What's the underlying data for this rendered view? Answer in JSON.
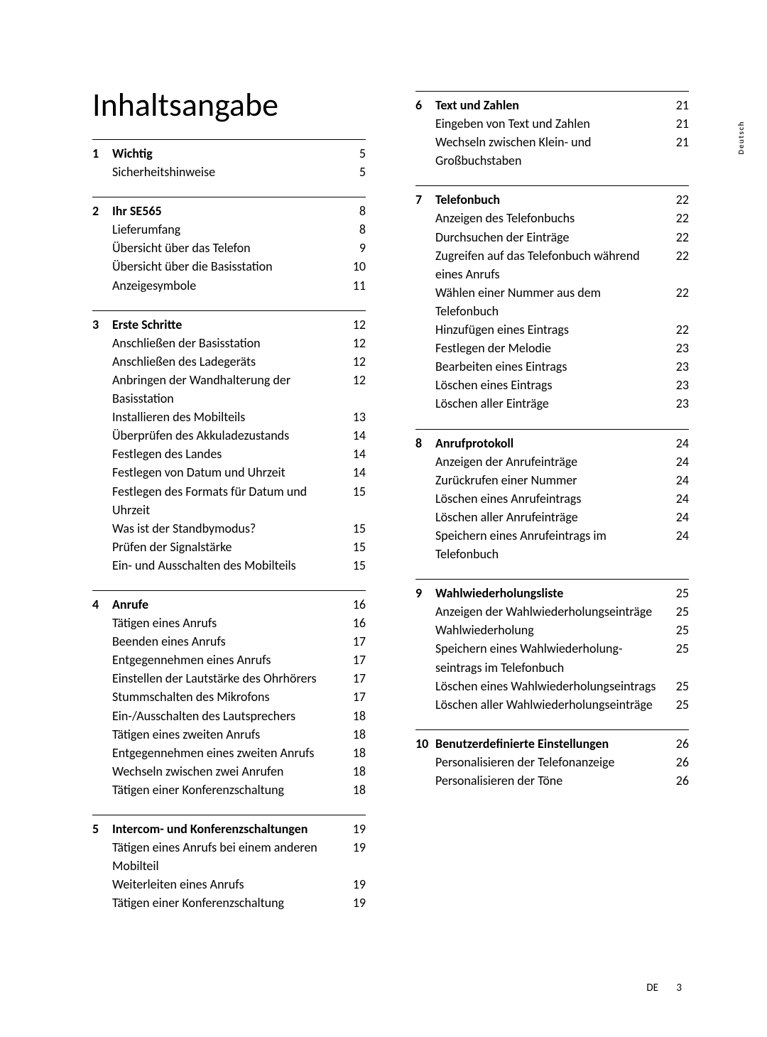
{
  "title": "Inhaltsangabe",
  "sideTab": "Deutsch",
  "footer": {
    "lang": "DE",
    "page": "3"
  },
  "leftSections": [
    {
      "num": "1",
      "head": {
        "label": "Wichtig",
        "page": "5"
      },
      "items": [
        {
          "label": "Sicherheitshinweise",
          "page": "5"
        }
      ]
    },
    {
      "num": "2",
      "head": {
        "label": "Ihr SE565",
        "page": "8"
      },
      "items": [
        {
          "label": "Lieferumfang",
          "page": "8"
        },
        {
          "label": "Übersicht über das Telefon",
          "page": "9"
        },
        {
          "label": "Übersicht über die Basisstation",
          "page": "10"
        },
        {
          "label": "Anzeigesymbole",
          "page": "11"
        }
      ]
    },
    {
      "num": "3",
      "head": {
        "label": "Erste Schritte",
        "page": "12"
      },
      "items": [
        {
          "label": "Anschließen der Basisstation",
          "page": "12"
        },
        {
          "label": "Anschließen des Ladegeräts",
          "page": "12"
        },
        {
          "label": "Anbringen der Wandhalterung der Basisstation",
          "page": "12"
        },
        {
          "label": "Installieren des Mobilteils",
          "page": "13"
        },
        {
          "label": "Überprüfen des Akkuladezustands",
          "page": "14"
        },
        {
          "label": "Festlegen des Landes",
          "page": "14"
        },
        {
          "label": "Festlegen von Datum und Uhrzeit",
          "page": "14"
        },
        {
          "label": "Festlegen des Formats für Datum und Uhrzeit",
          "page": "15"
        },
        {
          "label": "Was ist der Standbymodus?",
          "page": "15"
        },
        {
          "label": "Prüfen der Signalstärke",
          "page": "15"
        },
        {
          "label": "Ein- und Ausschalten des Mobilteils",
          "page": "15"
        }
      ]
    },
    {
      "num": "4",
      "head": {
        "label": "Anrufe",
        "page": "16"
      },
      "items": [
        {
          "label": "Tätigen eines Anrufs",
          "page": "16"
        },
        {
          "label": "Beenden eines Anrufs",
          "page": "17"
        },
        {
          "label": "Entgegennehmen eines Anrufs",
          "page": "17"
        },
        {
          "label": "Einstellen der Lautstärke des Ohrhörers",
          "page": "17"
        },
        {
          "label": "Stummschalten des Mikrofons",
          "page": "17"
        },
        {
          "label": "Ein-/Ausschalten des Lautsprechers",
          "page": "18"
        },
        {
          "label": "Tätigen eines zweiten Anrufs",
          "page": "18"
        },
        {
          "label": "Entgegennehmen eines zweiten Anrufs",
          "page": "18"
        },
        {
          "label": "Wechseln zwischen zwei Anrufen",
          "page": "18"
        },
        {
          "label": "Tätigen einer Konferenzschaltung",
          "page": "18"
        }
      ]
    },
    {
      "num": "5",
      "head": {
        "label": "Intercom- und Konferenzschaltungen",
        "page": "19"
      },
      "items": [
        {
          "label": "Tätigen eines Anrufs bei einem anderen Mobilteil",
          "page": "19"
        },
        {
          "label": "Weiterleiten eines Anrufs",
          "page": "19"
        },
        {
          "label": "Tätigen einer Konferenzschaltung",
          "page": "19"
        }
      ]
    }
  ],
  "rightSections": [
    {
      "num": "6",
      "head": {
        "label": "Text und Zahlen",
        "page": "21"
      },
      "items": [
        {
          "label": "Eingeben von Text und Zahlen",
          "page": "21"
        },
        {
          "label": "Wechseln zwischen Klein- und Großbuchstaben",
          "page": "21"
        }
      ]
    },
    {
      "num": "7",
      "head": {
        "label": "Telefonbuch",
        "page": "22"
      },
      "items": [
        {
          "label": "Anzeigen des Telefonbuchs",
          "page": "22"
        },
        {
          "label": "Durchsuchen der Einträge",
          "page": "22"
        },
        {
          "label": "Zugreifen auf das Telefonbuch während eines Anrufs",
          "page": "22"
        },
        {
          "label": "Wählen einer Nummer aus dem Telefonbuch",
          "page": "22"
        },
        {
          "label": "Hinzufügen eines Eintrags",
          "page": "22"
        },
        {
          "label": "Festlegen der Melodie",
          "page": "23"
        },
        {
          "label": "Bearbeiten eines Eintrags",
          "page": "23"
        },
        {
          "label": "Löschen eines Eintrags",
          "page": "23"
        },
        {
          "label": "Löschen aller Einträge",
          "page": "23"
        }
      ]
    },
    {
      "num": "8",
      "head": {
        "label": "Anrufprotokoll",
        "page": "24"
      },
      "items": [
        {
          "label": "Anzeigen der Anrufeinträge",
          "page": "24"
        },
        {
          "label": "Zurückrufen einer Nummer",
          "page": "24"
        },
        {
          "label": "Löschen eines Anrufeintrags",
          "page": "24"
        },
        {
          "label": "Löschen aller Anrufeinträge",
          "page": "24"
        },
        {
          "label": "Speichern eines Anrufeintrags im Telefonbuch",
          "page": "24"
        }
      ]
    },
    {
      "num": "9",
      "head": {
        "label": "Wahlwiederholungsliste",
        "page": "25"
      },
      "items": [
        {
          "label": "Anzeigen der Wahlwiederholung­seinträge",
          "page": "25"
        },
        {
          "label": "Wahlwiederholung",
          "page": "25"
        },
        {
          "label": "Speichern eines Wahlwiederholung­seintrags im Telefonbuch",
          "page": "25"
        },
        {
          "label": "Löschen eines Wahlwiederholung­seintrags",
          "page": "25"
        },
        {
          "label": "Löschen aller Wahlwiederholung­seinträge",
          "page": "25"
        }
      ]
    },
    {
      "num": "10",
      "head": {
        "label": "Benutzerdefinierte Einstellungen",
        "page": "26"
      },
      "items": [
        {
          "label": "Personalisieren der Telefonanzeige",
          "page": "26"
        },
        {
          "label": "Personalisieren der Töne",
          "page": "26"
        }
      ]
    }
  ]
}
